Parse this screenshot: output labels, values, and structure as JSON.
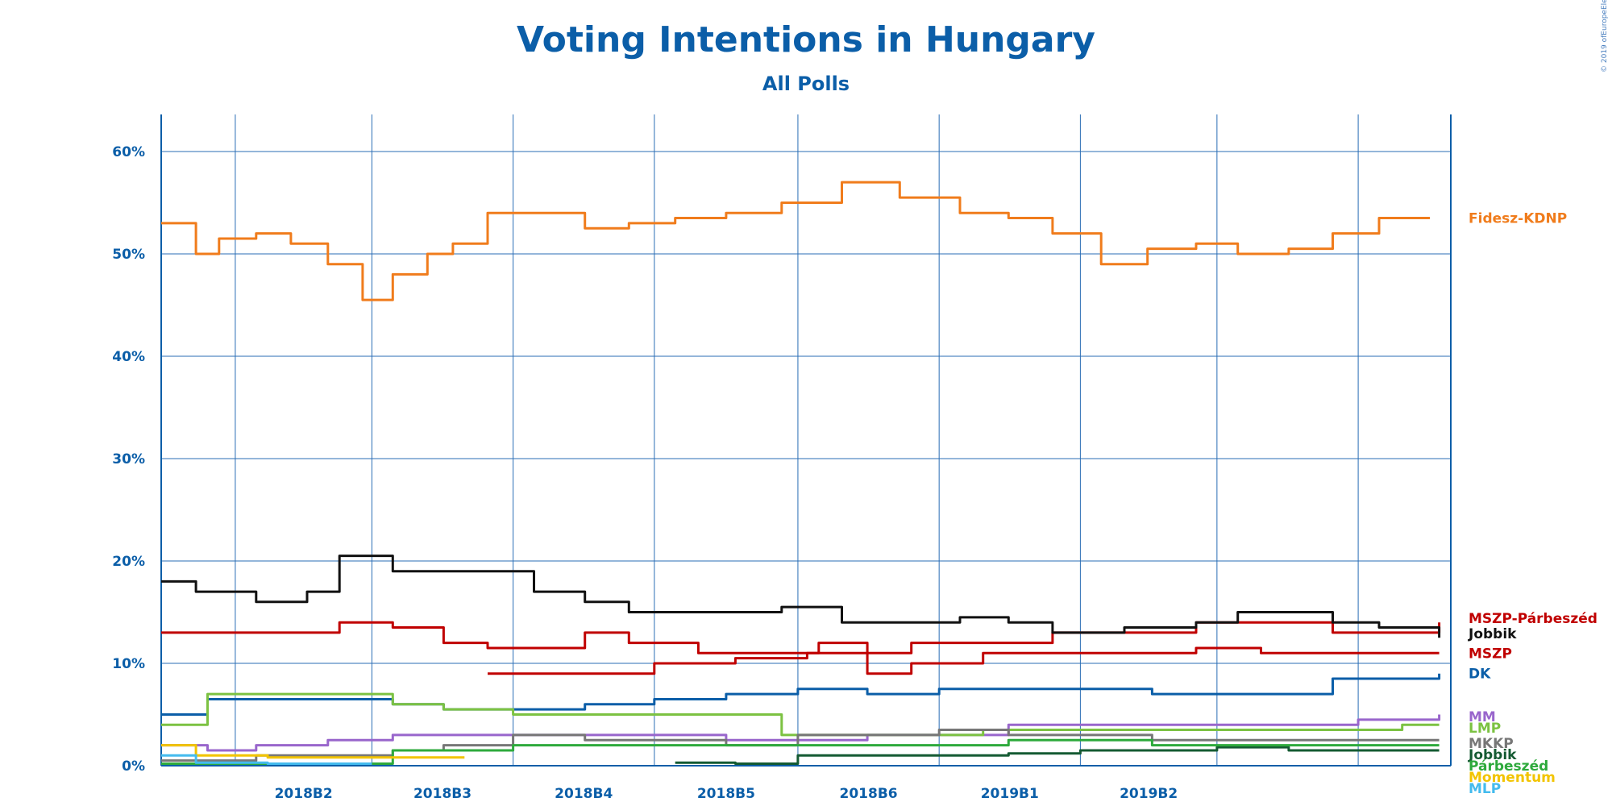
{
  "copyright": "© 2019 ofEuropeElects",
  "chart_data": {
    "type": "line",
    "title": "Voting Intentions in Hungary",
    "subtitle": "All Polls",
    "xlabel": "",
    "ylabel": "",
    "x_ticks": [
      "2018B2",
      "2018B3",
      "2018B4",
      "2018B5",
      "2018B6",
      "2019B1",
      "2019B2"
    ],
    "y_ticks": [
      "0%",
      "10%",
      "20%",
      "30%",
      "40%",
      "50%",
      "60%"
    ],
    "ylim": [
      0,
      60
    ],
    "x_range": [
      "2017-11-30",
      "2019-06-10"
    ],
    "grid": true,
    "legend": "right, labels at line ends",
    "series": [
      {
        "name": "Fidesz-KDNP",
        "color": "#f07c1c",
        "x": [
          "2017-11-30",
          "2017-12-15",
          "2017-12-25",
          "2018-01-10",
          "2018-01-25",
          "2018-02-10",
          "2018-02-25",
          "2018-03-10",
          "2018-03-25",
          "2018-04-05",
          "2018-04-20",
          "2018-05-10",
          "2018-06-01",
          "2018-06-20",
          "2018-07-10",
          "2018-08-01",
          "2018-08-25",
          "2018-09-20",
          "2018-10-15",
          "2018-11-10",
          "2018-12-01",
          "2018-12-20",
          "2019-01-10",
          "2019-01-30",
          "2019-02-20",
          "2019-03-10",
          "2019-04-01",
          "2019-04-20",
          "2019-05-10",
          "2019-06-01"
        ],
        "values": [
          53,
          50,
          51.5,
          52,
          51,
          49,
          45.5,
          48,
          50,
          51,
          54,
          54,
          52.5,
          53,
          53.5,
          54,
          55,
          57,
          55.5,
          54,
          53.5,
          52,
          49,
          50.5,
          51,
          50,
          50.5,
          52,
          53.5,
          53.5
        ]
      },
      {
        "name": "MSZP-Párbeszéd",
        "color": "#c00000",
        "x": [
          "2017-11-30",
          "2017-12-15",
          "2018-01-10",
          "2018-02-01",
          "2018-02-15",
          "2018-03-10",
          "2018-04-01",
          "2018-04-20",
          "2018-06-01",
          "2018-06-20",
          "2018-07-20",
          "2018-08-20",
          "2018-09-10",
          "2018-10-01",
          "2018-10-20",
          "2018-11-20",
          "2018-12-20",
          "2019-01-20",
          "2019-02-20",
          "2019-03-20",
          "2019-04-20",
          "2019-05-20",
          "2019-06-05"
        ],
        "values": [
          13,
          13,
          13,
          13,
          14,
          13.5,
          12,
          11.5,
          13,
          12,
          11,
          11,
          12,
          11,
          12,
          12,
          13,
          13,
          14,
          14,
          13,
          13,
          14
        ]
      },
      {
        "name": "Jobbik",
        "color": "#111111",
        "x": [
          "2017-11-30",
          "2017-12-15",
          "2018-01-10",
          "2018-02-01",
          "2018-02-15",
          "2018-03-10",
          "2018-04-01",
          "2018-04-20",
          "2018-05-10",
          "2018-06-01",
          "2018-06-20",
          "2018-07-10",
          "2018-08-01",
          "2018-08-25",
          "2018-09-20",
          "2018-10-15",
          "2018-11-10",
          "2018-12-01",
          "2018-12-20",
          "2019-01-20",
          "2019-02-20",
          "2019-03-10",
          "2019-04-01",
          "2019-04-20",
          "2019-05-10",
          "2019-06-05"
        ],
        "values": [
          18,
          17,
          16,
          17,
          20.5,
          19,
          19,
          19,
          17,
          16,
          15,
          15,
          15,
          15.5,
          14,
          14,
          14.5,
          14,
          13,
          13.5,
          14,
          15,
          15,
          14,
          13.5,
          12.5
        ]
      },
      {
        "name": "MSZP",
        "color": "#c00000",
        "x": [
          "2018-04-20",
          "2018-05-25",
          "2018-07-01",
          "2018-08-05",
          "2018-09-05",
          "2018-10-01",
          "2018-10-20",
          "2018-11-20",
          "2018-12-20",
          "2019-01-20",
          "2019-02-20",
          "2019-03-20",
          "2019-04-20",
          "2019-05-20",
          "2019-06-05"
        ],
        "values": [
          9,
          9,
          10,
          10.5,
          11,
          9,
          10,
          11,
          11,
          11,
          11.5,
          11,
          11,
          11,
          11
        ]
      },
      {
        "name": "DK",
        "color": "#0b5ea8",
        "x": [
          "2017-11-30",
          "2017-12-10",
          "2017-12-20",
          "2018-01-10",
          "2018-02-10",
          "2018-03-10",
          "2018-04-01",
          "2018-05-01",
          "2018-06-01",
          "2018-07-01",
          "2018-08-01",
          "2018-09-01",
          "2018-10-01",
          "2018-11-01",
          "2018-12-01",
          "2019-01-01",
          "2019-02-01",
          "2019-03-01",
          "2019-04-01",
          "2019-04-20",
          "2019-05-10",
          "2019-06-05"
        ],
        "values": [
          5,
          5,
          6.5,
          6.5,
          6.5,
          6,
          5.5,
          5.5,
          6,
          6.5,
          7,
          7.5,
          7,
          7.5,
          7.5,
          7.5,
          7,
          7,
          7,
          8.5,
          8.5,
          9
        ]
      },
      {
        "name": "MM",
        "color": "#9966cc",
        "x": [
          "2017-11-30",
          "2017-12-20",
          "2018-01-10",
          "2018-02-10",
          "2018-03-10",
          "2018-04-01",
          "2018-05-01",
          "2018-06-01",
          "2018-07-01",
          "2018-08-01",
          "2018-09-01",
          "2018-10-01",
          "2018-11-01",
          "2018-12-01",
          "2019-01-01",
          "2019-02-01",
          "2019-03-01",
          "2019-04-01",
          "2019-05-01",
          "2019-06-05"
        ],
        "values": [
          2,
          1.5,
          2,
          2.5,
          3,
          3,
          3,
          3,
          3,
          2.5,
          2.5,
          3,
          3,
          4,
          4,
          4,
          4,
          4,
          4.5,
          5
        ]
      },
      {
        "name": "LMP",
        "color": "#7cc242",
        "x": [
          "2017-11-30",
          "2017-12-10",
          "2017-12-20",
          "2018-01-10",
          "2018-02-10",
          "2018-03-10",
          "2018-04-01",
          "2018-05-01",
          "2018-06-01",
          "2018-07-01",
          "2018-08-01",
          "2018-08-25",
          "2018-09-20",
          "2018-10-20",
          "2018-11-20",
          "2018-12-20",
          "2019-01-20",
          "2019-02-20",
          "2019-03-20",
          "2019-04-20",
          "2019-05-20",
          "2019-06-05"
        ],
        "values": [
          4,
          4,
          7,
          7,
          7,
          6,
          5.5,
          5,
          5,
          5,
          5,
          3,
          3,
          3,
          3.5,
          3.5,
          3.5,
          3.5,
          3.5,
          3.5,
          4,
          4
        ]
      },
      {
        "name": "MKKP",
        "color": "#777777",
        "x": [
          "2017-11-30",
          "2018-01-10",
          "2018-02-10",
          "2018-03-10",
          "2018-04-01",
          "2018-05-01",
          "2018-06-01",
          "2018-07-01",
          "2018-08-01",
          "2018-09-01",
          "2018-10-01",
          "2018-11-01",
          "2018-12-01",
          "2019-01-01",
          "2019-02-01",
          "2019-03-01",
          "2019-04-01",
          "2019-05-01",
          "2019-06-05"
        ],
        "values": [
          0.5,
          1,
          1,
          1.5,
          2,
          3,
          2.5,
          2.5,
          2,
          3,
          3,
          3.5,
          3,
          3,
          2.5,
          2.5,
          2.5,
          2.5,
          2.5
        ]
      },
      {
        "name": "Jobbik",
        "color": "#145a32",
        "x": [
          "2018-07-10",
          "2018-08-05",
          "2018-09-01",
          "2018-10-01",
          "2018-11-01",
          "2018-12-01",
          "2019-01-01",
          "2019-02-01",
          "2019-03-01",
          "2019-04-01",
          "2019-05-01",
          "2019-06-05"
        ],
        "values": [
          0.3,
          0.2,
          1,
          1,
          1,
          1.2,
          1.5,
          1.5,
          1.8,
          1.5,
          1.5,
          1.5
        ]
      },
      {
        "name": "Párbeszéd",
        "color": "#2eaa3c",
        "x": [
          "2017-11-30",
          "2018-02-01",
          "2018-03-10",
          "2018-05-01",
          "2018-06-01",
          "2018-07-01",
          "2018-08-01",
          "2018-09-01",
          "2018-10-01",
          "2018-11-01",
          "2018-12-01",
          "2019-01-01",
          "2019-02-01",
          "2019-03-01",
          "2019-04-01",
          "2019-05-01",
          "2019-06-05"
        ],
        "values": [
          0.2,
          0.2,
          1.5,
          2,
          2,
          2,
          2,
          2,
          2,
          2,
          2.5,
          2.5,
          2,
          2,
          2,
          2,
          2
        ]
      },
      {
        "name": "Momentum",
        "color": "#f2c400",
        "x": [
          "2017-11-30",
          "2017-12-15",
          "2018-01-15",
          "2018-02-15",
          "2018-03-15",
          "2018-04-10"
        ],
        "values": [
          2,
          1,
          0.8,
          0.8,
          0.8,
          0.8
        ]
      },
      {
        "name": "MLP",
        "color": "#44bbee",
        "x": [
          "2017-11-30",
          "2017-12-15",
          "2018-01-15",
          "2018-02-15",
          "2018-03-01"
        ],
        "values": [
          1,
          0.3,
          0.2,
          0.2,
          0.2
        ]
      }
    ],
    "end_labels": [
      {
        "text": "Fidesz-KDNP",
        "color": "#f07c1c",
        "value": 53.5
      },
      {
        "text": "MSZP-Párbeszéd",
        "color": "#c00000",
        "value": 14.4
      },
      {
        "text": "Jobbik",
        "color": "#111111",
        "value": 12.9
      },
      {
        "text": "MSZP",
        "color": "#c00000",
        "value": 11.0
      },
      {
        "text": "DK",
        "color": "#0b5ea8",
        "value": 9.0
      },
      {
        "text": "MM",
        "color": "#9966cc",
        "value": 4.8
      },
      {
        "text": "LMP",
        "color": "#7cc242",
        "value": 4.4
      },
      {
        "text": "MKKP",
        "color": "#777777",
        "value": 2.2
      },
      {
        "text": "Jobbik",
        "color": "#145a32",
        "value": 1.6
      },
      {
        "text": "Párbeszéd",
        "color": "#2eaa3c",
        "value": 1.3
      },
      {
        "text": "Momentum",
        "color": "#f2c400",
        "value": 1.0
      },
      {
        "text": "MLP",
        "color": "#44bbee",
        "value": 0.0
      }
    ]
  }
}
